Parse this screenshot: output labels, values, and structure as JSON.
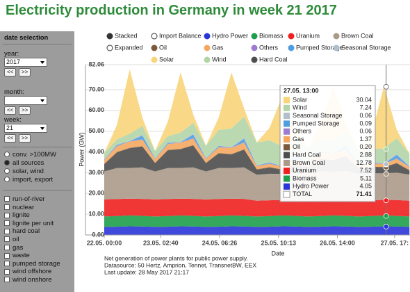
{
  "header": {
    "title": "Electricity production in Germany in week 21 2017"
  },
  "sidebar": {
    "title": "date selection",
    "year_label": "year:",
    "year": "2017",
    "month_label": "month:",
    "week_label": "week:",
    "week": "21",
    "prev": "<<",
    "next": ">>",
    "source_options": [
      {
        "label": "conv. >100MW",
        "checked": false
      },
      {
        "label": "all sources",
        "checked": true
      },
      {
        "label": "solar, wind",
        "checked": false
      },
      {
        "label": "import, export",
        "checked": false
      }
    ],
    "sources": [
      "run-of-river",
      "nuclear",
      "lignite",
      "lignite per unit",
      "hard coal",
      "oil",
      "gas",
      "waste",
      "pumped storage",
      "wind offshore",
      "wind onshore"
    ]
  },
  "chart_data": {
    "type": "area",
    "stacked": true,
    "grid": true,
    "xlabel": "Date",
    "ylabel": "Power (GW)",
    "x": [
      "22.05. 00:00",
      "22.05. 06:00",
      "22.05. 12:00",
      "22.05. 18:00",
      "23.05. 00:00",
      "23.05. 06:00",
      "23.05. 12:00",
      "23.05. 18:00",
      "24.05. 00:00",
      "24.05. 06:00",
      "24.05. 12:00",
      "24.05. 18:00",
      "25.05. 00:00",
      "25.05. 06:00",
      "25.05. 12:00",
      "25.05. 18:00",
      "26.05. 00:00",
      "26.05. 06:00",
      "26.05. 12:00",
      "26.05. 18:00",
      "27.05. 00:00",
      "27.05. 06:00",
      "27.05. 12:00",
      "27.05. 18:00",
      "28.05. 00:00"
    ],
    "xticks": [
      "22.05. 00:00",
      "23.05. 02:40",
      "24.05. 06:26",
      "25.05. 10:13",
      "26.05. 14:00",
      "27.05. 17:"
    ],
    "ylim": [
      0,
      82.06
    ],
    "yticks": [
      {
        "value": 0,
        "label": "0.00"
      },
      {
        "value": 10,
        "label": "10.00"
      },
      {
        "value": 20,
        "label": "20.00"
      },
      {
        "value": 30,
        "label": "30.00"
      },
      {
        "value": 40,
        "label": "40.00"
      },
      {
        "value": 50,
        "label": "50.00"
      },
      {
        "value": 60,
        "label": "60.00"
      },
      {
        "value": 70,
        "label": "70.00"
      },
      82.06
    ],
    "view_modes": [
      "Stacked",
      "Expanded"
    ],
    "hidden_series": [
      {
        "name": "Import Balance",
        "color": "#ffffff"
      }
    ],
    "series": [
      {
        "name": "Hydro Power",
        "color": "#2a35d8",
        "values": [
          3.9,
          4.0,
          4.2,
          4.1,
          3.9,
          4.0,
          4.2,
          4.1,
          3.9,
          4.0,
          4.2,
          4.1,
          3.9,
          4.0,
          4.2,
          4.1,
          3.9,
          4.0,
          4.2,
          4.1,
          3.9,
          4.0,
          4.2,
          4.1,
          3.9
        ]
      },
      {
        "name": "Biomass",
        "color": "#1e9e4a",
        "values": [
          5.0,
          5.1,
          5.2,
          5.1,
          5.0,
          5.1,
          5.2,
          5.1,
          5.0,
          5.1,
          5.2,
          5.1,
          5.0,
          5.1,
          5.2,
          5.1,
          5.0,
          5.1,
          5.2,
          5.1,
          5.0,
          5.1,
          5.2,
          5.1,
          5.0
        ]
      },
      {
        "name": "Uranium",
        "color": "#f02020",
        "values": [
          8.2,
          8.2,
          8.1,
          8.2,
          8.2,
          8.2,
          8.1,
          8.2,
          8.2,
          8.2,
          8.1,
          8.2,
          7.6,
          7.6,
          7.5,
          7.6,
          7.6,
          7.6,
          7.5,
          7.6,
          7.6,
          7.6,
          7.5,
          7.6,
          7.6
        ]
      },
      {
        "name": "Brown Coal",
        "color": "#ab9a8a",
        "values": [
          13.5,
          15.0,
          14.8,
          15.2,
          13.5,
          15.0,
          14.8,
          15.2,
          13.5,
          15.0,
          14.8,
          15.2,
          12.5,
          12.8,
          12.5,
          13.0,
          13.2,
          14.0,
          13.5,
          14.0,
          13.0,
          13.0,
          12.8,
          13.2,
          12.6
        ]
      },
      {
        "name": "Hard Coal",
        "color": "#4d4d4d",
        "values": [
          3.5,
          7.5,
          9.5,
          10.0,
          4.0,
          8.5,
          9.0,
          10.5,
          4.0,
          7.0,
          6.5,
          8.5,
          2.5,
          3.0,
          2.0,
          4.0,
          3.0,
          6.0,
          5.5,
          7.0,
          2.5,
          3.0,
          2.9,
          4.5,
          2.0
        ]
      },
      {
        "name": "Oil",
        "color": "#7a5a3a",
        "values": [
          0.2,
          0.2,
          0.2,
          0.2,
          0.2,
          0.2,
          0.2,
          0.2,
          0.2,
          0.2,
          0.2,
          0.2,
          0.2,
          0.2,
          0.2,
          0.2,
          0.2,
          0.2,
          0.2,
          0.2,
          0.2,
          0.2,
          0.2,
          0.2,
          0.2
        ]
      },
      {
        "name": "Gas",
        "color": "#f5a760",
        "values": [
          1.8,
          2.8,
          3.0,
          3.2,
          1.8,
          2.8,
          3.0,
          3.2,
          1.8,
          2.8,
          3.0,
          3.2,
          1.5,
          1.6,
          1.4,
          2.0,
          1.8,
          2.8,
          3.0,
          3.2,
          1.5,
          1.6,
          1.4,
          2.0,
          1.5
        ]
      },
      {
        "name": "Others",
        "color": "#9d7bd0",
        "values": [
          0.1,
          0.1,
          0.1,
          0.1,
          0.1,
          0.1,
          0.1,
          0.1,
          0.1,
          0.1,
          0.1,
          0.1,
          0.1,
          0.1,
          0.1,
          0.1,
          0.1,
          0.1,
          0.1,
          0.1,
          0.1,
          0.1,
          0.1,
          0.1,
          0.1
        ]
      },
      {
        "name": "Pumped Storage",
        "color": "#4f9de0",
        "values": [
          0.2,
          0.5,
          0.1,
          1.8,
          0.2,
          0.5,
          0.1,
          1.8,
          0.2,
          0.5,
          0.1,
          1.8,
          0.2,
          0.5,
          0.1,
          1.8,
          0.2,
          0.5,
          0.1,
          1.8,
          0.2,
          0.5,
          0.1,
          1.8,
          0.2
        ]
      },
      {
        "name": "Seasonal Storage",
        "color": "#b0bfc9",
        "values": [
          0.1,
          0.2,
          0.1,
          0.6,
          0.1,
          0.2,
          0.1,
          0.6,
          0.1,
          0.2,
          0.1,
          0.6,
          0.1,
          0.2,
          0.1,
          0.6,
          0.1,
          0.2,
          0.1,
          0.6,
          0.1,
          0.2,
          0.1,
          0.6,
          0.1
        ]
      },
      {
        "name": "Wind",
        "color": "#b2d5a8",
        "values": [
          3.0,
          2.5,
          3.5,
          4.0,
          3.5,
          3.0,
          4.5,
          5.0,
          6.0,
          7.5,
          9.0,
          10.0,
          11.0,
          10.5,
          9.5,
          9.0,
          7.0,
          5.5,
          6.0,
          6.5,
          6.5,
          6.0,
          7.2,
          7.5,
          6.0
        ]
      },
      {
        "name": "Solar",
        "color": "#f8d57a",
        "values": [
          0,
          7,
          31,
          4,
          0,
          7,
          29,
          4,
          0,
          6,
          27,
          4,
          0,
          6,
          24,
          4,
          0,
          7,
          26,
          4,
          0,
          7,
          30,
          4,
          0
        ]
      }
    ],
    "tooltip": {
      "title": "27.05. 13:00",
      "names": [
        "Solar",
        "Wind",
        "Seasonal Storage",
        "Pumped Storage",
        "Others",
        "Gas",
        "Oil",
        "Hard Coal",
        "Brown Coal",
        "Uranium",
        "Biomass",
        "Hydro Power"
      ],
      "colors": [
        "#f8d57a",
        "#b2d5a8",
        "#b0bfc9",
        "#4f9de0",
        "#9d7bd0",
        "#f5a760",
        "#7a5a3a",
        "#4d4d4d",
        "#ab9a8a",
        "#f02020",
        "#1e9e4a",
        "#2a35d8"
      ],
      "values": [
        30.04,
        7.24,
        0.06,
        0.09,
        0.06,
        1.37,
        0.2,
        2.88,
        12.78,
        7.52,
        5.11,
        4.05
      ],
      "value_labels": [
        "30.04",
        "7.24",
        "0.06",
        "0.09",
        "0.06",
        "1.37",
        "0.20",
        "2.88",
        "12.78",
        "7.52",
        "5.11",
        "4.05"
      ],
      "total_label": "TOTAL",
      "total": 71.41
    },
    "notes": [
      "Net generation of power plants for public power supply.",
      "Datasource: 50 Hertz, Amprion, Tennet, TransnetBW, EEX",
      "Last update: 28 May 2017 21:17"
    ]
  }
}
